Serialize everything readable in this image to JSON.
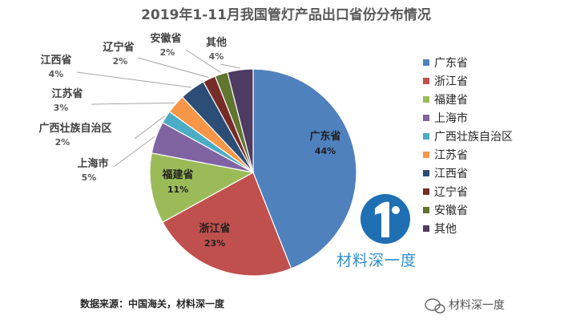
{
  "chart_data": {
    "type": "pie",
    "title": "2019年1-11月我国管灯产品出口省份分布情况",
    "slices": [
      {
        "name": "广东省",
        "value": 44,
        "label": "44%",
        "color": "#4f81bd"
      },
      {
        "name": "浙江省",
        "value": 23,
        "label": "23%",
        "color": "#c0504d"
      },
      {
        "name": "福建省",
        "value": 11,
        "label": "11%",
        "color": "#9bbb59"
      },
      {
        "name": "上海市",
        "value": 5,
        "label": "5%",
        "color": "#8064a2"
      },
      {
        "name": "广西壮族自治区",
        "value": 2,
        "label": "2%",
        "color": "#4bacc6"
      },
      {
        "name": "江苏省",
        "value": 3,
        "label": "3%",
        "color": "#f79646"
      },
      {
        "name": "江西省",
        "value": 4,
        "label": "4%",
        "color": "#2c4d75"
      },
      {
        "name": "辽宁省",
        "value": 2,
        "label": "2%",
        "color": "#772c2a"
      },
      {
        "name": "安徽省",
        "value": 2,
        "label": "2%",
        "color": "#5f7530"
      },
      {
        "name": "其他",
        "value": 4,
        "label": "4%",
        "color": "#4d3b62"
      }
    ],
    "legend_position": "right"
  },
  "source": "数据来源：中国海关，材料深一度",
  "watermark": {
    "text": "材料深一度",
    "logo_icon": "material-logo-icon"
  },
  "wechat": {
    "text": "材料深一度",
    "icon": "wechat-icon"
  }
}
